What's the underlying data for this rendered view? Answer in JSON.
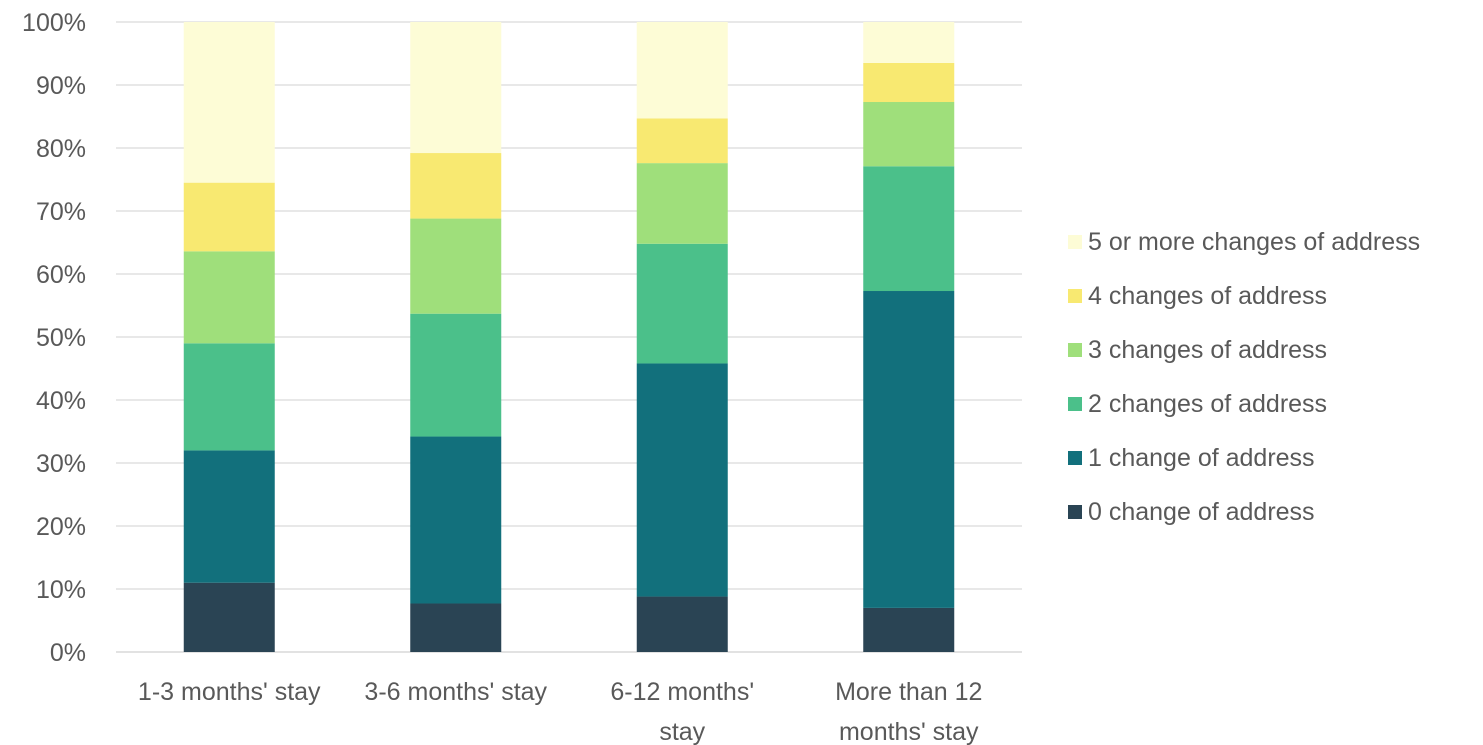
{
  "chart_data": {
    "type": "bar",
    "stacked": true,
    "percent_stacked": true,
    "categories": [
      [
        "1-3 months' stay"
      ],
      [
        "3-6 months' stay"
      ],
      [
        "6-12 months'",
        "stay"
      ],
      [
        "More than 12",
        "months' stay"
      ]
    ],
    "series": [
      {
        "name": "0 change of address",
        "color": "#2a4454",
        "values": [
          11,
          7.7,
          8.8,
          7
        ]
      },
      {
        "name": "1 change of address",
        "color": "#12707c",
        "values": [
          21,
          26.5,
          37,
          50.3
        ]
      },
      {
        "name": "2 changes of address",
        "color": "#4bc08a",
        "values": [
          17,
          19.5,
          19,
          19.8
        ]
      },
      {
        "name": "3 changes of address",
        "color": "#9fdf7b",
        "values": [
          14.6,
          15.1,
          12.8,
          10.2
        ]
      },
      {
        "name": "4 changes of address",
        "color": "#f8e971",
        "values": [
          10.9,
          10.4,
          7.1,
          6.2
        ]
      },
      {
        "name": "5 or more changes of address",
        "color": "#fdfcd6",
        "values": [
          25.5,
          20.8,
          15.3,
          6.5
        ]
      }
    ],
    "y_ticks": [
      "0%",
      "10%",
      "20%",
      "30%",
      "40%",
      "50%",
      "60%",
      "70%",
      "80%",
      "90%",
      "100%"
    ],
    "ylim": [
      0,
      100
    ],
    "grid": true,
    "legend_position": "right",
    "title": "",
    "xlabel": "",
    "ylabel": ""
  }
}
